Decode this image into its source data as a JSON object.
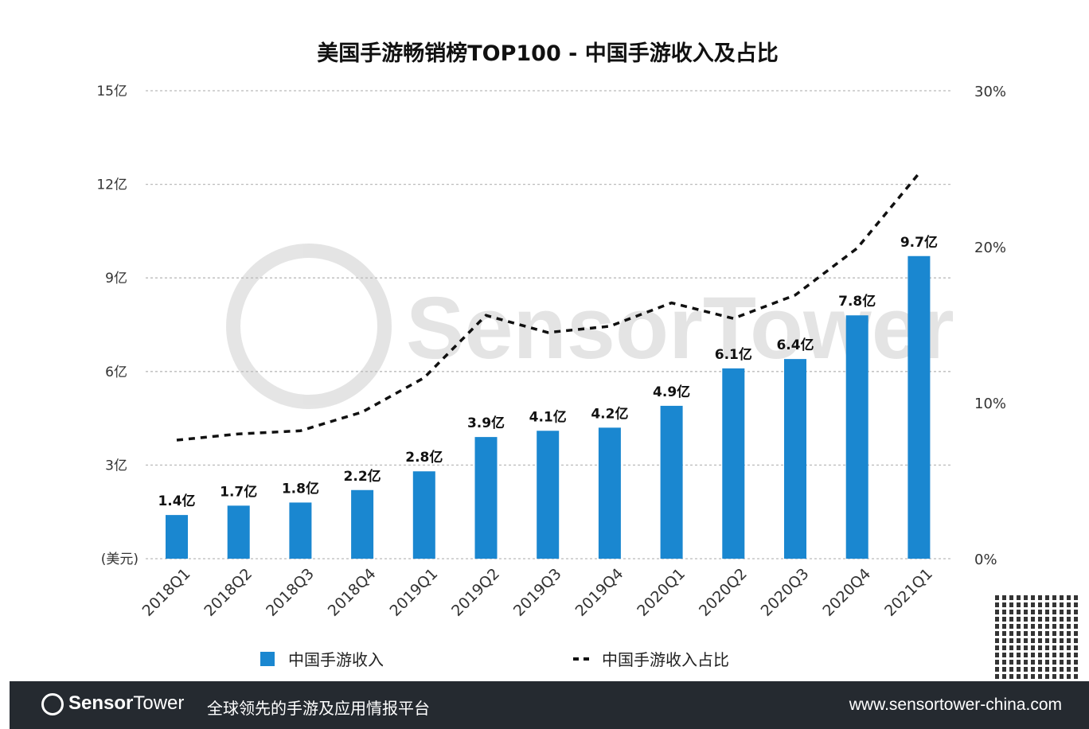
{
  "chart_data": {
    "type": "bar",
    "title": "美国手游畅销榜TOP100 - 中国手游收入及占比",
    "categories": [
      "2018Q1",
      "2018Q2",
      "2018Q3",
      "2018Q4",
      "2019Q1",
      "2019Q2",
      "2019Q3",
      "2019Q4",
      "2020Q1",
      "2020Q2",
      "2020Q3",
      "2020Q4",
      "2021Q1"
    ],
    "series": [
      {
        "name": "中国手游收入",
        "type": "bar",
        "axis": "left",
        "color": "#1a87d0",
        "values": [
          1.4,
          1.7,
          1.8,
          2.2,
          2.8,
          3.9,
          4.1,
          4.2,
          4.9,
          6.1,
          6.4,
          7.8,
          9.7
        ],
        "labels": [
          "1.4亿",
          "1.7亿",
          "1.8亿",
          "2.2亿",
          "2.8亿",
          "3.9亿",
          "4.1亿",
          "4.2亿",
          "4.9亿",
          "6.1亿",
          "6.4亿",
          "7.8亿",
          "9.7亿"
        ]
      },
      {
        "name": "中国手游收入占比",
        "type": "line",
        "style": "dashed",
        "axis": "right",
        "color": "#111111",
        "values": [
          7.6,
          8.0,
          8.2,
          9.4,
          11.6,
          15.6,
          14.5,
          14.9,
          16.4,
          15.4,
          16.9,
          19.9,
          24.7
        ]
      }
    ],
    "left_axis": {
      "range": [
        0,
        15
      ],
      "ticks": [
        0,
        3,
        6,
        9,
        12,
        15
      ],
      "tick_labels": [
        "(美元)",
        "3亿",
        "6亿",
        "9亿",
        "12亿",
        "15亿"
      ]
    },
    "right_axis": {
      "range": [
        0,
        30
      ],
      "ticks": [
        0,
        10,
        20,
        30
      ],
      "tick_labels": [
        "0%",
        "10%",
        "20%",
        "30%"
      ]
    },
    "grid": true,
    "legend_placement": "bottom"
  },
  "footer": {
    "brand_bold": "Sensor",
    "brand_light": "Tower",
    "slogan": "全球领先的手游及应用情报平台",
    "url": "www.sensortower-china.com"
  }
}
